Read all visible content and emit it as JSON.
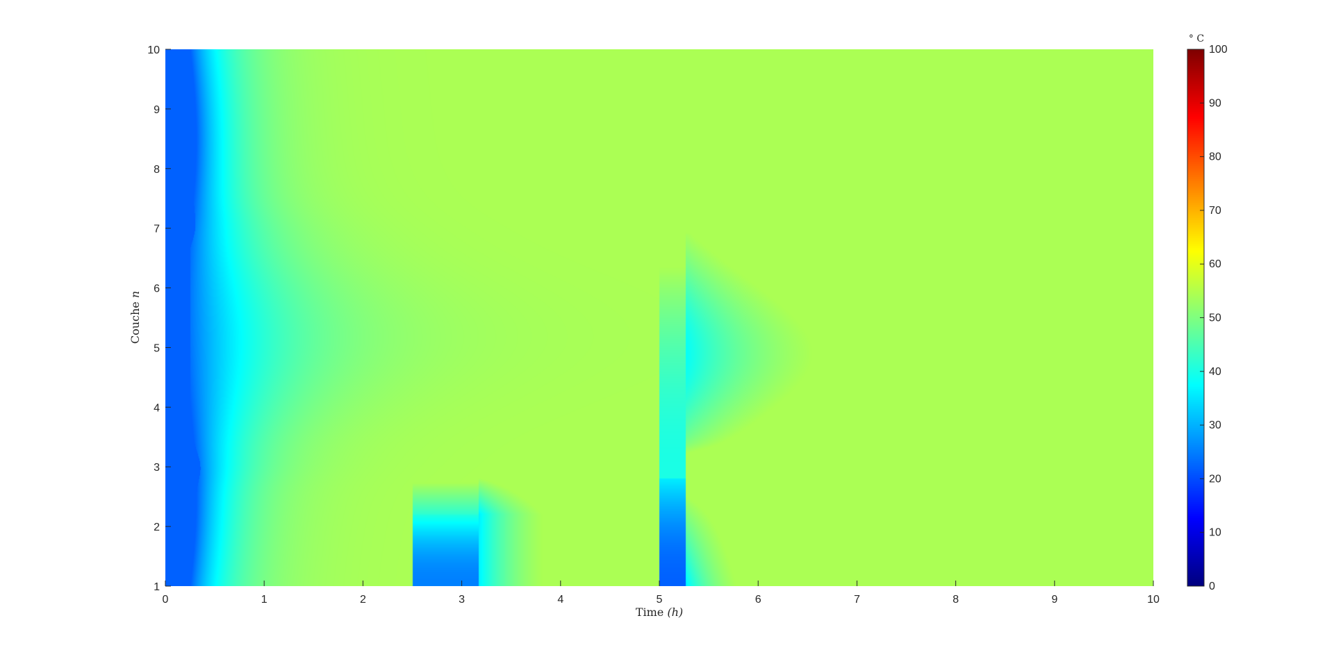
{
  "chart_data": {
    "type": "heatmap",
    "title": "",
    "xlabel": "Time ",
    "xlabel_var": "(h)",
    "ylabel": "Couche ",
    "ylabel_var": "n",
    "xlim": [
      0,
      10
    ],
    "ylim": [
      1,
      10
    ],
    "xticks": [
      "0",
      "1",
      "2",
      "3",
      "4",
      "5",
      "6",
      "7",
      "8",
      "9",
      "10"
    ],
    "yticks": [
      "1",
      "2",
      "3",
      "4",
      "5",
      "6",
      "7",
      "8",
      "9",
      "10"
    ],
    "colormap": "jet",
    "colorbar": {
      "label": "° C",
      "limits": [
        0,
        100
      ],
      "ticks": [
        "0",
        "10",
        "20",
        "30",
        "40",
        "50",
        "60",
        "70",
        "80",
        "90",
        "100"
      ]
    },
    "base_temperature": 60,
    "charging_events": [
      {
        "start": 0.0,
        "end": 0.25,
        "layers": [
          1,
          10
        ],
        "temperature": 22
      },
      {
        "start": 2.5,
        "end": 3.17,
        "layers": [
          1,
          2.2
        ],
        "temperature": 25
      },
      {
        "start": 5.0,
        "end": 5.27,
        "layers": [
          1,
          2.8
        ],
        "temperature": 22
      }
    ],
    "grid": false
  }
}
